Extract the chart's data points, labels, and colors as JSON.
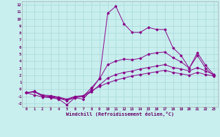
{
  "xlabel": "Windchill (Refroidissement éolien,°C)",
  "bg_color": "#c8eeee",
  "grid_color": "#a8d8d8",
  "line_color": "#880088",
  "xlim": [
    -0.5,
    23.5
  ],
  "ylim": [
    -2.5,
    12.5
  ],
  "xticks": [
    0,
    1,
    2,
    3,
    4,
    5,
    6,
    7,
    8,
    9,
    10,
    11,
    12,
    13,
    14,
    15,
    16,
    17,
    18,
    19,
    20,
    21,
    22,
    23
  ],
  "yticks": [
    -2,
    -1,
    0,
    1,
    2,
    3,
    4,
    5,
    6,
    7,
    8,
    9,
    10,
    11,
    12
  ],
  "lines": [
    [
      [
        -0.5,
        -0.8,
        -1.1,
        -1.2,
        -1.4,
        -2.2,
        -1.2,
        -1.4,
        -0.1,
        1.6,
        10.8,
        11.8,
        9.3,
        8.1,
        8.1,
        8.8,
        8.5,
        8.5,
        5.9,
        4.8,
        3.0,
        5.2,
        3.4,
        2.1
      ]
    ],
    [
      [
        -0.5,
        -0.3,
        -1.0,
        -1.1,
        -1.3,
        -1.6,
        -1.2,
        -1.0,
        0.2,
        1.5,
        3.5,
        4.0,
        4.3,
        4.2,
        4.4,
        5.0,
        5.2,
        5.3,
        4.5,
        3.9,
        3.0,
        4.8,
        3.0,
        1.9
      ]
    ],
    [
      [
        -0.5,
        -0.4,
        -0.9,
        -1.0,
        -1.2,
        -1.5,
        -1.1,
        -1.0,
        -0.4,
        0.6,
        1.6,
        2.1,
        2.4,
        2.6,
        2.9,
        3.1,
        3.3,
        3.5,
        3.1,
        2.9,
        2.6,
        3.1,
        2.6,
        2.1
      ]
    ],
    [
      [
        -0.5,
        -0.3,
        -0.8,
        -0.9,
        -1.1,
        -1.4,
        -1.0,
        -0.9,
        -0.2,
        0.4,
        0.9,
        1.3,
        1.6,
        1.9,
        2.1,
        2.3,
        2.5,
        2.7,
        2.4,
        2.2,
        2.0,
        2.4,
        2.1,
        1.9
      ]
    ]
  ]
}
